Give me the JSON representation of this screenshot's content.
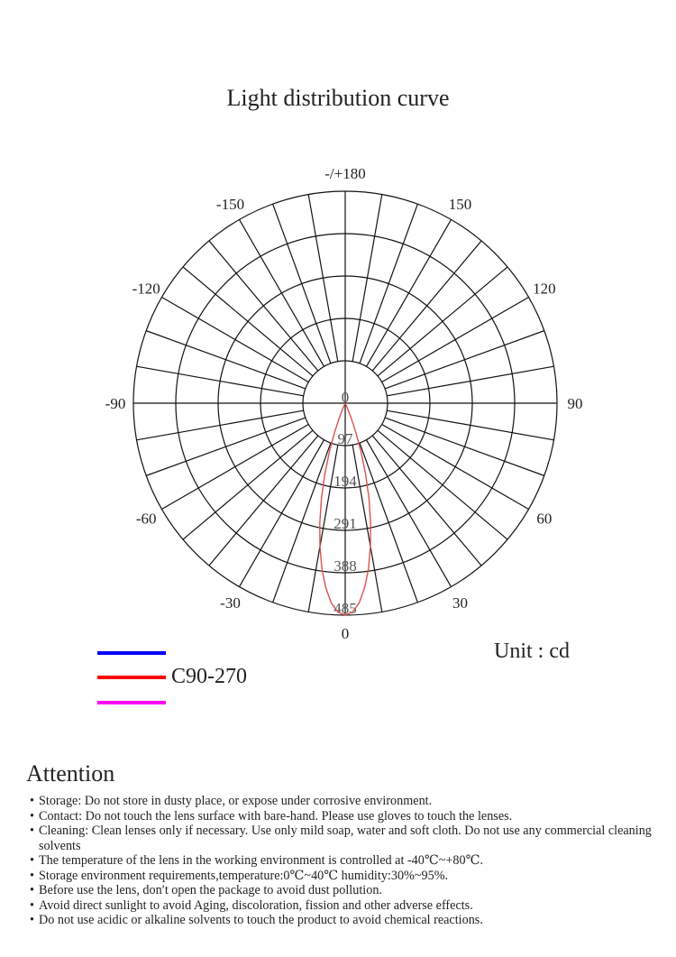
{
  "chart_data": {
    "type": "polar-line",
    "title": "Light distribution curve",
    "unit_label": "Unit : cd",
    "radial_ticks": [
      0,
      97,
      194,
      291,
      388,
      485
    ],
    "radial_range": [
      0,
      485
    ],
    "angle_tick_labels": [
      {
        "angle": 0,
        "label": "0"
      },
      {
        "angle": 30,
        "label": "30"
      },
      {
        "angle": 60,
        "label": "60"
      },
      {
        "angle": 90,
        "label": "90"
      },
      {
        "angle": 120,
        "label": "120"
      },
      {
        "angle": 150,
        "label": "150"
      },
      {
        "angle": 180,
        "label": "-/+180"
      },
      {
        "angle": -150,
        "label": "-150"
      },
      {
        "angle": -120,
        "label": "-120"
      },
      {
        "angle": -90,
        "label": "-90"
      },
      {
        "angle": -60,
        "label": "-60"
      },
      {
        "angle": -30,
        "label": "-30"
      }
    ],
    "grid": true,
    "legend": [
      {
        "name": "",
        "color": "#0000ff"
      },
      {
        "name": "C90-270",
        "color": "#ff0000"
      },
      {
        "name": "",
        "color": "#ff00ff"
      }
    ],
    "series": [
      {
        "name": "C90-270",
        "color": "#d9534f",
        "angles": [
          -26,
          -24,
          -22,
          -20,
          -18,
          -16,
          -14,
          -12,
          -10,
          -8,
          -6,
          -4,
          -2,
          0,
          2,
          4,
          6,
          8,
          10,
          12,
          14,
          16,
          18,
          20,
          22,
          24,
          26
        ],
        "values": [
          0,
          10,
          35,
          72,
          118,
          170,
          225,
          280,
          333,
          383,
          425,
          458,
          478,
          485,
          478,
          458,
          425,
          383,
          333,
          280,
          225,
          170,
          118,
          72,
          35,
          10,
          0
        ]
      }
    ]
  },
  "attention": {
    "title": "Attention",
    "items": [
      "Storage: Do not store in dusty place, or expose under corrosive environment.",
      "Contact: Do not touch the lens surface with bare-hand. Please use gloves to touch the lenses.",
      "Cleaning: Clean lenses only if necessary. Use only mild soap, water and soft cloth. Do not use any commercial cleaning solvents",
      "The temperature of the lens in the working environment is controlled at -40℃~+80℃.",
      "Storage environment requirements,temperature:0℃~40℃ humidity:30%~95%.",
      "Before use the lens, don′t open the package to avoid dust pollution.",
      "Avoid direct sunlight to avoid Aging, discoloration, fission and other adverse effects.",
      "Do not use acidic or alkaline solvents to touch the product to avoid  chemical reactions."
    ]
  }
}
